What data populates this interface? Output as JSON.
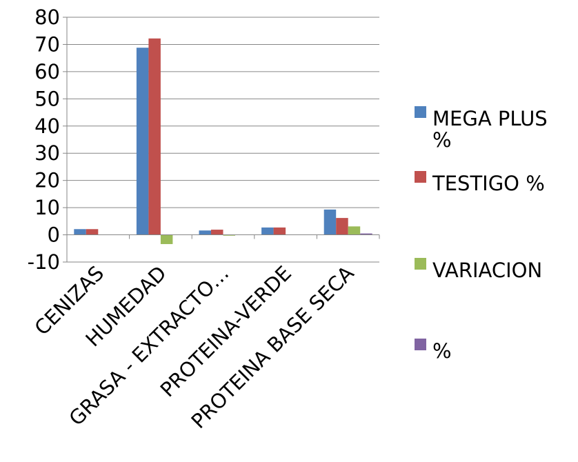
{
  "chart_data": {
    "type": "bar",
    "categories": [
      "CENIZAS",
      "HUMEDAD",
      "GRASA - EXTRACTO…",
      "PROTEINA-VERDE",
      "PROTEINA BASE SECA"
    ],
    "series": [
      {
        "name": "MEGA PLUS %",
        "legend_lines": [
          "MEGA PLUS",
          "%"
        ],
        "color": "#4f81bd",
        "values": [
          2.1,
          68.8,
          1.6,
          2.7,
          9.3
        ]
      },
      {
        "name": "TESTIGO %",
        "legend_lines": [
          "TESTIGO %"
        ],
        "color": "#c0504d",
        "values": [
          2.1,
          72.2,
          1.9,
          2.7,
          6.2
        ]
      },
      {
        "name": "VARIACION",
        "legend_lines": [
          "VARIACION"
        ],
        "color": "#9bbb59",
        "values": [
          0,
          -3.4,
          -0.3,
          0,
          3.1
        ]
      },
      {
        "name": "%",
        "legend_lines": [
          "%"
        ],
        "color": "#8064a2",
        "values": [
          0,
          0,
          0,
          0,
          0.5
        ]
      }
    ],
    "ylim": [
      -10,
      80
    ],
    "yticks": [
      -10,
      0,
      10,
      20,
      30,
      40,
      50,
      60,
      70,
      80
    ],
    "grid": true,
    "legend_position": "right",
    "title": "",
    "xlabel": "",
    "ylabel": ""
  }
}
